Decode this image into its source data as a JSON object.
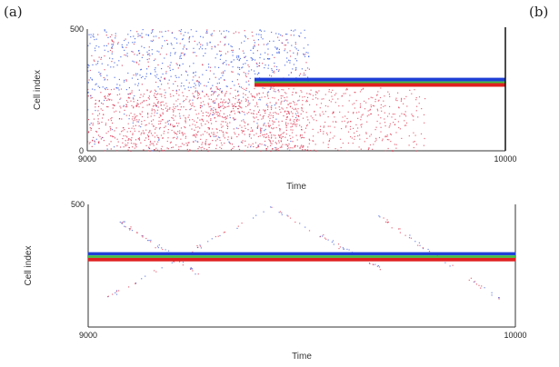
{
  "panel_labels": {
    "a": "(a)",
    "b": "(b)"
  },
  "chart_data": [
    {
      "type": "scatter",
      "panel": "top",
      "xlabel": "Time",
      "ylabel": "Cell index",
      "xlim": [
        9000,
        10000
      ],
      "ylim": [
        0,
        500
      ],
      "x_ticks": [
        "9000",
        "10000"
      ],
      "y_ticks": [
        "0",
        "500"
      ],
      "grid": false,
      "series": [
        {
          "color": "#1f3fd6",
          "band": [
            285,
            300
          ],
          "scatter_region": "upper"
        },
        {
          "color": "#3fbf3f",
          "band": [
            278,
            285
          ]
        },
        {
          "color": "#e0201f",
          "band": [
            263,
            278
          ],
          "scatter_region": "lower"
        }
      ],
      "band_start_x": 9400,
      "vertical_line_x": 10000
    },
    {
      "type": "scatter",
      "panel": "bottom",
      "xlabel": "Time",
      "ylabel": "Cell index",
      "xlim": [
        9000,
        10000
      ],
      "ylim": [
        0,
        500
      ],
      "x_ticks": [
        "9000",
        "10000"
      ],
      "y_ticks": [
        "500"
      ],
      "grid": false,
      "series": [
        {
          "color": "#1f3fd6",
          "band": [
            292,
            305
          ]
        },
        {
          "color": "#3fbf3f",
          "band": [
            282,
            292
          ]
        },
        {
          "color": "#e0201f",
          "band": [
            268,
            282
          ]
        }
      ]
    }
  ]
}
